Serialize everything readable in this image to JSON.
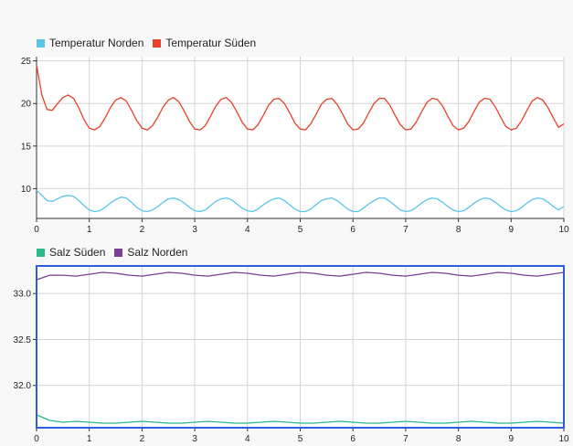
{
  "chart_data": [
    {
      "type": "line",
      "title": "",
      "xlabel": "",
      "ylabel": "",
      "xlim": [
        0,
        10
      ],
      "ylim": [
        6.5,
        25.5
      ],
      "xticks": [
        "0",
        "1",
        "2",
        "3",
        "4",
        "5",
        "6",
        "7",
        "8",
        "9",
        "10"
      ],
      "yticks": [
        "10",
        "15",
        "20",
        "25"
      ],
      "grid": true,
      "legend_position": "top-left",
      "series": [
        {
          "name": "Temperatur Norden",
          "color": "#5bc4e8",
          "x": [
            0,
            0.1,
            0.2,
            0.3,
            0.4,
            0.5,
            0.6,
            0.7,
            0.8,
            0.9,
            1,
            1.1,
            1.2,
            1.3,
            1.4,
            1.5,
            1.6,
            1.7,
            1.8,
            1.9,
            2,
            2.1,
            2.2,
            2.3,
            2.4,
            2.5,
            2.6,
            2.7,
            2.8,
            2.9,
            3,
            3.1,
            3.2,
            3.3,
            3.4,
            3.5,
            3.6,
            3.7,
            3.8,
            3.9,
            4,
            4.1,
            4.2,
            4.3,
            4.4,
            4.5,
            4.6,
            4.7,
            4.8,
            4.9,
            5,
            5.1,
            5.2,
            5.3,
            5.4,
            5.5,
            5.6,
            5.7,
            5.8,
            5.9,
            6,
            6.1,
            6.2,
            6.3,
            6.4,
            6.5,
            6.6,
            6.7,
            6.8,
            6.9,
            7,
            7.1,
            7.2,
            7.3,
            7.4,
            7.5,
            7.6,
            7.7,
            7.8,
            7.9,
            8,
            8.1,
            8.2,
            8.3,
            8.4,
            8.5,
            8.6,
            8.7,
            8.8,
            8.9,
            9,
            9.1,
            9.2,
            9.3,
            9.4,
            9.5,
            9.6,
            9.7,
            9.8,
            9.9,
            10
          ],
          "y": [
            9.8,
            9.2,
            8.6,
            8.5,
            8.8,
            9.1,
            9.2,
            9.1,
            8.6,
            8.0,
            7.5,
            7.3,
            7.4,
            7.8,
            8.3,
            8.7,
            9.0,
            8.9,
            8.4,
            7.8,
            7.4,
            7.3,
            7.5,
            7.9,
            8.4,
            8.8,
            8.9,
            8.7,
            8.3,
            7.8,
            7.4,
            7.3,
            7.5,
            8.0,
            8.5,
            8.8,
            8.9,
            8.7,
            8.2,
            7.7,
            7.4,
            7.3,
            7.6,
            8.1,
            8.5,
            8.8,
            8.9,
            8.6,
            8.1,
            7.6,
            7.3,
            7.3,
            7.6,
            8.1,
            8.6,
            8.8,
            8.9,
            8.6,
            8.1,
            7.6,
            7.3,
            7.3,
            7.7,
            8.2,
            8.6,
            8.9,
            8.9,
            8.5,
            8.0,
            7.5,
            7.3,
            7.4,
            7.8,
            8.3,
            8.7,
            8.9,
            8.8,
            8.4,
            7.9,
            7.5,
            7.3,
            7.4,
            7.8,
            8.3,
            8.7,
            8.9,
            8.8,
            8.4,
            7.9,
            7.5,
            7.3,
            7.4,
            7.8,
            8.3,
            8.7,
            8.9,
            8.8,
            8.4,
            7.9,
            7.5,
            7.9
          ]
        },
        {
          "name": "Temperatur Süden",
          "color": "#e8412c",
          "x": [
            0,
            0.1,
            0.2,
            0.3,
            0.4,
            0.5,
            0.6,
            0.7,
            0.8,
            0.9,
            1,
            1.1,
            1.2,
            1.3,
            1.4,
            1.5,
            1.6,
            1.7,
            1.8,
            1.9,
            2,
            2.1,
            2.2,
            2.3,
            2.4,
            2.5,
            2.6,
            2.7,
            2.8,
            2.9,
            3,
            3.1,
            3.2,
            3.3,
            3.4,
            3.5,
            3.6,
            3.7,
            3.8,
            3.9,
            4,
            4.1,
            4.2,
            4.3,
            4.4,
            4.5,
            4.6,
            4.7,
            4.8,
            4.9,
            5,
            5.1,
            5.2,
            5.3,
            5.4,
            5.5,
            5.6,
            5.7,
            5.8,
            5.9,
            6,
            6.1,
            6.2,
            6.3,
            6.4,
            6.5,
            6.6,
            6.7,
            6.8,
            6.9,
            7,
            7.1,
            7.2,
            7.3,
            7.4,
            7.5,
            7.6,
            7.7,
            7.8,
            7.9,
            8,
            8.1,
            8.2,
            8.3,
            8.4,
            8.5,
            8.6,
            8.7,
            8.8,
            8.9,
            9,
            9.1,
            9.2,
            9.3,
            9.4,
            9.5,
            9.6,
            9.7,
            9.8,
            9.9,
            10
          ],
          "y": [
            24.5,
            21.0,
            19.3,
            19.2,
            20.0,
            20.7,
            21.0,
            20.6,
            19.5,
            18.1,
            17.1,
            16.9,
            17.3,
            18.3,
            19.5,
            20.4,
            20.7,
            20.3,
            19.2,
            18.0,
            17.1,
            16.9,
            17.4,
            18.4,
            19.6,
            20.4,
            20.7,
            20.2,
            19.1,
            17.9,
            17.0,
            16.9,
            17.4,
            18.5,
            19.7,
            20.5,
            20.7,
            20.1,
            19.0,
            17.8,
            17.0,
            16.9,
            17.5,
            18.6,
            19.8,
            20.5,
            20.6,
            20.0,
            18.9,
            17.7,
            17.0,
            16.9,
            17.6,
            18.7,
            19.9,
            20.5,
            20.6,
            19.9,
            18.8,
            17.6,
            16.9,
            17.0,
            17.7,
            18.9,
            20.0,
            20.6,
            20.6,
            19.8,
            18.6,
            17.5,
            16.9,
            17.0,
            17.8,
            19.0,
            20.1,
            20.6,
            20.5,
            19.7,
            18.5,
            17.4,
            16.9,
            17.1,
            17.9,
            19.1,
            20.2,
            20.6,
            20.5,
            19.6,
            18.4,
            17.3,
            16.9,
            17.1,
            18.0,
            19.2,
            20.3,
            20.7,
            20.4,
            19.5,
            18.3,
            17.2,
            17.6
          ]
        }
      ]
    },
    {
      "type": "line",
      "title": "",
      "xlabel": "",
      "ylabel": "",
      "xlim": [
        0,
        10
      ],
      "ylim": [
        31.54,
        33.3
      ],
      "xticks": [
        "0",
        "1",
        "2",
        "3",
        "4",
        "5",
        "6",
        "7",
        "8",
        "9",
        "10"
      ],
      "yticks": [
        "32.0",
        "32.5",
        "33.0"
      ],
      "grid": true,
      "legend_position": "top-left",
      "series": [
        {
          "name": "Salz Süden",
          "color": "#2bb88a",
          "x": [
            0,
            0.25,
            0.5,
            0.75,
            1,
            1.25,
            1.5,
            1.75,
            2,
            2.25,
            2.5,
            2.75,
            3,
            3.25,
            3.5,
            3.75,
            4,
            4.25,
            4.5,
            4.75,
            5,
            5.25,
            5.5,
            5.75,
            6,
            6.25,
            6.5,
            6.75,
            7,
            7.25,
            7.5,
            7.75,
            8,
            8.25,
            8.5,
            8.75,
            9,
            9.25,
            9.5,
            9.75,
            10
          ],
          "y": [
            31.68,
            31.62,
            31.6,
            31.61,
            31.6,
            31.59,
            31.59,
            31.6,
            31.61,
            31.6,
            31.59,
            31.59,
            31.6,
            31.61,
            31.6,
            31.59,
            31.59,
            31.6,
            31.61,
            31.6,
            31.59,
            31.59,
            31.6,
            31.61,
            31.6,
            31.59,
            31.59,
            31.6,
            31.61,
            31.6,
            31.59,
            31.59,
            31.6,
            31.61,
            31.6,
            31.59,
            31.59,
            31.6,
            31.61,
            31.6,
            31.59
          ]
        },
        {
          "name": "Salz Norden",
          "color": "#7a3f96",
          "x": [
            0,
            0.25,
            0.5,
            0.75,
            1,
            1.25,
            1.5,
            1.75,
            2,
            2.25,
            2.5,
            2.75,
            3,
            3.25,
            3.5,
            3.75,
            4,
            4.25,
            4.5,
            4.75,
            5,
            5.25,
            5.5,
            5.75,
            6,
            6.25,
            6.5,
            6.75,
            7,
            7.25,
            7.5,
            7.75,
            8,
            8.25,
            8.5,
            8.75,
            9,
            9.25,
            9.5,
            9.75,
            10
          ],
          "y": [
            33.15,
            33.2,
            33.2,
            33.19,
            33.21,
            33.23,
            33.22,
            33.2,
            33.19,
            33.21,
            33.23,
            33.22,
            33.2,
            33.19,
            33.21,
            33.23,
            33.22,
            33.2,
            33.19,
            33.21,
            33.23,
            33.22,
            33.2,
            33.19,
            33.21,
            33.23,
            33.22,
            33.2,
            33.19,
            33.21,
            33.23,
            33.22,
            33.2,
            33.19,
            33.21,
            33.23,
            33.22,
            33.2,
            33.19,
            33.21,
            33.23
          ]
        }
      ]
    }
  ]
}
